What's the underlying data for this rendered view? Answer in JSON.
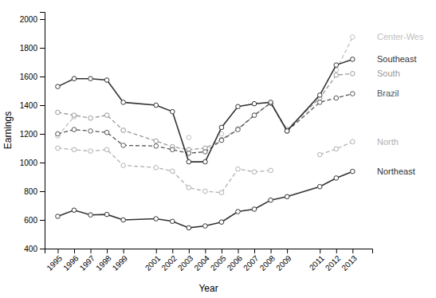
{
  "chart_data": {
    "type": "line",
    "x": [
      1995,
      1996,
      1997,
      1998,
      1999,
      2001,
      2002,
      2003,
      2004,
      2005,
      2006,
      2007,
      2008,
      2009,
      2011,
      2012,
      2013
    ],
    "series": [
      {
        "name": "Center-Wes",
        "color": "#c0c0c0",
        "line_style": "dashed",
        "marker": "circle",
        "values": [
          1185,
          1320,
          null,
          null,
          1225,
          null,
          null,
          1175,
          null,
          1200,
          null,
          null,
          null,
          null,
          null,
          1645,
          1875
        ]
      },
      {
        "name": "South",
        "color": "#999999",
        "line_style": "dashed",
        "marker": "circle",
        "values": [
          1350,
          1330,
          1310,
          1330,
          1225,
          1150,
          1110,
          1090,
          1100,
          1160,
          1235,
          1330,
          1415,
          1230,
          1450,
          1610,
          1620
        ]
      },
      {
        "name": "North",
        "color": "#b0b0b0",
        "line_style": "dashed",
        "marker": "circle",
        "values": [
          1100,
          1090,
          1080,
          1090,
          980,
          965,
          940,
          825,
          800,
          790,
          955,
          935,
          945,
          null,
          1055,
          1095,
          1145
        ]
      },
      {
        "name": "Brazil",
        "color": "#555555",
        "line_style": "dashed",
        "marker": "circle",
        "values": [
          1200,
          1230,
          1220,
          1210,
          1120,
          1115,
          1090,
          1065,
          1075,
          1155,
          1230,
          1330,
          1415,
          1220,
          1420,
          1450,
          1480
        ]
      },
      {
        "name": "Southeast",
        "color": "#333333",
        "line_style": "solid",
        "marker": "circle",
        "values": [
          1530,
          1585,
          1585,
          1575,
          1420,
          1400,
          1355,
          1005,
          1005,
          1245,
          1390,
          1410,
          1420,
          1220,
          1470,
          1680,
          1720
        ]
      },
      {
        "name": "Northeast",
        "color": "#333333",
        "line_style": "solid",
        "marker": "circle",
        "values": [
          625,
          668,
          635,
          638,
          600,
          608,
          590,
          545,
          558,
          585,
          658,
          675,
          738,
          762,
          832,
          892,
          938
        ]
      }
    ],
    "xlabel": "Year",
    "ylabel": "Earnings",
    "xlim": [
      1994.2,
      2014.2
    ],
    "xticks": [
      1995,
      1996,
      1997,
      1998,
      1999,
      2001,
      2002,
      2003,
      2004,
      2005,
      2006,
      2007,
      2008,
      2009,
      2011,
      2012,
      2013
    ],
    "ylim": [
      400,
      2050
    ],
    "yticks": [
      400,
      600,
      800,
      1000,
      1200,
      1400,
      1600,
      1800,
      2000
    ],
    "grid": false
  }
}
